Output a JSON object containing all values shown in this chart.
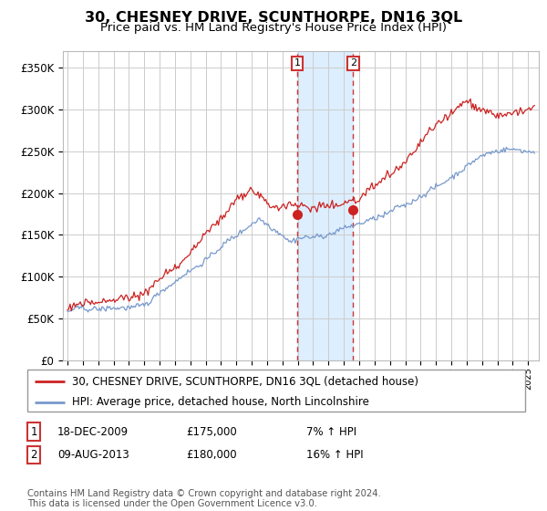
{
  "title": "30, CHESNEY DRIVE, SCUNTHORPE, DN16 3QL",
  "subtitle": "Price paid vs. HM Land Registry's House Price Index (HPI)",
  "title_fontsize": 12,
  "subtitle_fontsize": 10,
  "ylabel_ticks": [
    "£0",
    "£50K",
    "£100K",
    "£150K",
    "£200K",
    "£250K",
    "£300K",
    "£350K"
  ],
  "ylabel_values": [
    0,
    50000,
    100000,
    150000,
    200000,
    250000,
    300000,
    350000
  ],
  "ylim": [
    0,
    370000
  ],
  "sale1_date": 2009.96,
  "sale1_price": 175000,
  "sale1_label": "1",
  "sale2_date": 2013.6,
  "sale2_price": 180000,
  "sale2_label": "2",
  "legend1_label": "30, CHESNEY DRIVE, SCUNTHORPE, DN16 3QL (detached house)",
  "legend2_label": "HPI: Average price, detached house, North Lincolnshire",
  "table_row1": [
    "1",
    "18-DEC-2009",
    "£175,000",
    "7% ↑ HPI"
  ],
  "table_row2": [
    "2",
    "09-AUG-2013",
    "£180,000",
    "16% ↑ HPI"
  ],
  "footer": "Contains HM Land Registry data © Crown copyright and database right 2024.\nThis data is licensed under the Open Government Licence v3.0.",
  "hpi_color": "#7799cc",
  "price_color": "#cc2222",
  "sale_dot_color": "#cc2222",
  "grid_color": "#cccccc",
  "background_color": "#ffffff",
  "shade_color": "#ddeeff",
  "dashed_color": "#cc3333"
}
